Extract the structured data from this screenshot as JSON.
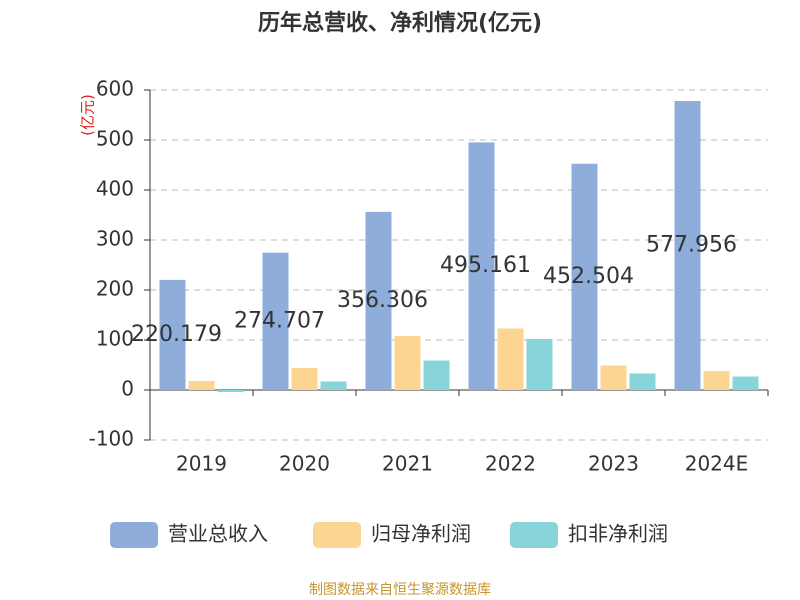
{
  "chart_data": {
    "type": "bar",
    "title": "历年总营收、净利情况(亿元)",
    "y_label": "(亿元)",
    "categories": [
      "2019",
      "2020",
      "2021",
      "2022",
      "2023",
      "2024E"
    ],
    "series": [
      {
        "name": "营业总收入",
        "color": "#8eaddb",
        "values": [
          220.179,
          274.707,
          356.306,
          495.161,
          452.504,
          577.956
        ]
      },
      {
        "name": "归母净利润",
        "color": "#fdd593",
        "values": [
          18,
          44,
          108,
          123,
          49,
          38
        ]
      },
      {
        "name": "扣非净利润",
        "color": "#87d5d8",
        "values": [
          -4,
          17,
          59,
          102,
          33,
          27
        ]
      }
    ],
    "ylim": [
      -100,
      600
    ],
    "yticks": [
      -100,
      0,
      100,
      200,
      300,
      400,
      500,
      600
    ],
    "grid": true,
    "source": "制图数据来自恒生聚源数据库"
  }
}
